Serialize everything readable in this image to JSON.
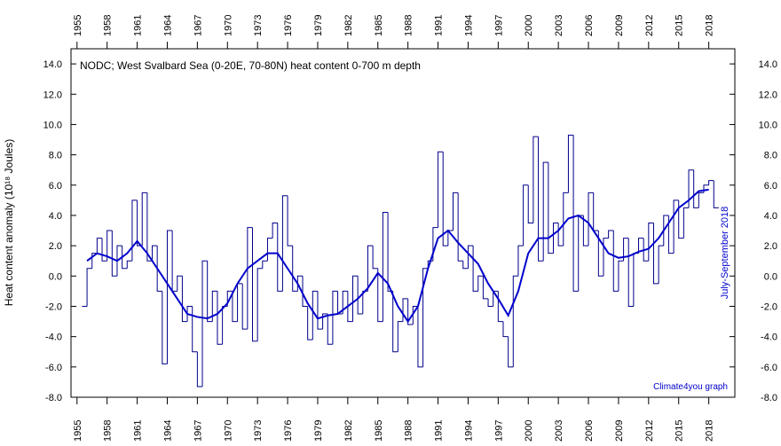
{
  "chart_data": {
    "type": "line",
    "title": "NODC; West Svalbard Sea (0-20E, 70-80N) heat content 0-700 m depth",
    "ylabel": "Heat content anomaly (10¹⁸ Joules)",
    "annotations": [
      "July-September 2018",
      "Climate4you graph"
    ],
    "xlim": [
      1954.4,
      2020.6
    ],
    "ylim": [
      -8,
      15
    ],
    "xticks": [
      1955,
      1958,
      1961,
      1964,
      1967,
      1970,
      1973,
      1976,
      1979,
      1982,
      1985,
      1988,
      1991,
      1994,
      1997,
      2000,
      2003,
      2006,
      2009,
      2012,
      2015,
      2018
    ],
    "yticks": [
      {
        "value": -8,
        "label": "-8.0"
      },
      {
        "value": -6,
        "label": "-6.0"
      },
      {
        "value": -4,
        "label": "-4.0"
      },
      {
        "value": -2,
        "label": "-2.0"
      },
      {
        "value": 0,
        "label": "0.0"
      },
      {
        "value": 2,
        "label": "2.0"
      },
      {
        "value": 4,
        "label": "4.0"
      },
      {
        "value": 6,
        "label": "6.0"
      },
      {
        "value": 8,
        "label": "8.0"
      },
      {
        "value": 10,
        "label": "10.0"
      },
      {
        "value": 12,
        "label": "12.0"
      },
      {
        "value": 14,
        "label": "14.0"
      }
    ],
    "series": [
      {
        "color": "#00008b",
        "style": "step",
        "x": [
          1955.5,
          1956,
          1956.5,
          1957,
          1957.5,
          1958,
          1958.5,
          1959,
          1959.5,
          1960,
          1960.5,
          1961,
          1961.5,
          1962,
          1962.5,
          1963,
          1963.5,
          1964,
          1964.5,
          1965,
          1965.5,
          1966,
          1966.5,
          1967,
          1967.5,
          1968,
          1968.5,
          1969,
          1969.5,
          1970,
          1970.5,
          1971,
          1971.5,
          1972,
          1972.5,
          1973,
          1973.5,
          1974,
          1974.5,
          1975,
          1975.5,
          1976,
          1976.5,
          1977,
          1977.5,
          1978,
          1978.5,
          1979,
          1979.5,
          1980,
          1980.5,
          1981,
          1981.5,
          1982,
          1982.5,
          1983,
          1983.5,
          1984,
          1984.5,
          1985,
          1985.5,
          1986,
          1986.5,
          1987,
          1987.5,
          1988,
          1988.5,
          1989,
          1989.5,
          1990,
          1990.5,
          1991,
          1991.5,
          1992,
          1992.5,
          1993,
          1993.5,
          1994,
          1994.5,
          1995,
          1995.5,
          1996,
          1996.5,
          1997,
          1997.5,
          1998,
          1998.5,
          1999,
          1999.5,
          2000,
          2000.5,
          2001,
          2001.5,
          2002,
          2002.5,
          2003,
          2003.5,
          2004,
          2004.5,
          2005,
          2005.5,
          2006,
          2006.5,
          2007,
          2007.5,
          2008,
          2008.5,
          2009,
          2009.5,
          2010,
          2010.5,
          2011,
          2011.5,
          2012,
          2012.5,
          2013,
          2013.5,
          2014,
          2014.5,
          2015,
          2015.5,
          2016,
          2016.5,
          2017,
          2017.5,
          2018,
          2018.5
        ],
        "values": [
          -2,
          0.5,
          1.5,
          2.5,
          1,
          3,
          0,
          2,
          0.5,
          1,
          5,
          2,
          5.5,
          1,
          2,
          -1,
          -5.8,
          3,
          -1,
          0,
          -3,
          -2,
          -5,
          -7.3,
          1,
          -3,
          -1,
          -4.5,
          -2,
          -1,
          -3,
          -0.5,
          -3.5,
          3.2,
          -4.3,
          0.5,
          1,
          2.5,
          3.5,
          -1,
          5.3,
          2,
          -1,
          0,
          -2,
          -4.2,
          -1,
          -3.5,
          -2.5,
          -4.5,
          -1,
          -2.5,
          -1,
          -3,
          0,
          -2.5,
          -1,
          2,
          0.5,
          -3,
          4.2,
          -1,
          -5,
          -3,
          -1.5,
          -3.2,
          -2,
          -6,
          0.5,
          1,
          3.2,
          8.2,
          2,
          3,
          5.5,
          1,
          0.5,
          2,
          -1,
          0,
          -1.5,
          -2,
          -1,
          -3,
          -4,
          -6,
          0,
          2,
          6,
          3.5,
          9.2,
          1,
          7.5,
          1.5,
          3.5,
          2,
          5.5,
          9.3,
          -1,
          4,
          2,
          5.5,
          3,
          0,
          2.5,
          3,
          -1,
          1,
          2.5,
          -2,
          1.5,
          2.5,
          1,
          3.5,
          -0.5,
          2,
          4,
          1.5,
          5,
          2.5,
          4.5,
          7,
          4.5,
          5.5,
          6,
          6.3,
          4.5
        ]
      },
      {
        "color": "#0000cc",
        "x": [
          1956,
          1957,
          1958,
          1959,
          1960,
          1961,
          1962,
          1963,
          1964,
          1965,
          1966,
          1967,
          1968,
          1969,
          1970,
          1971,
          1972,
          1973,
          1974,
          1975,
          1976,
          1977,
          1978,
          1979,
          1980,
          1981,
          1982,
          1983,
          1984,
          1985,
          1986,
          1987,
          1988,
          1989,
          1990,
          1991,
          1992,
          1993,
          1994,
          1995,
          1996,
          1997,
          1998,
          1999,
          2000,
          2001,
          2002,
          2003,
          2004,
          2005,
          2006,
          2007,
          2008,
          2009,
          2010,
          2011,
          2012,
          2013,
          2014,
          2015,
          2016,
          2017,
          2018
        ],
        "values": [
          1,
          1.5,
          1.3,
          1,
          1.5,
          2.3,
          1.5,
          0.5,
          -0.5,
          -1.5,
          -2.5,
          -2.7,
          -2.8,
          -2.5,
          -1.8,
          -0.5,
          0.5,
          1,
          1.5,
          1.5,
          0.5,
          -0.5,
          -1.8,
          -2.8,
          -2.6,
          -2.5,
          -2,
          -1.5,
          -0.8,
          0.2,
          -0.5,
          -2,
          -3,
          -2,
          0.5,
          2.5,
          3,
          2.2,
          1.5,
          0.8,
          -0.5,
          -1.5,
          -2.6,
          -1,
          1.5,
          2.5,
          2.5,
          3,
          3.8,
          4,
          3.5,
          2.5,
          1.5,
          1.2,
          1.3,
          1.6,
          1.8,
          2.5,
          3.5,
          4.5,
          5,
          5.6,
          5.7
        ]
      }
    ]
  }
}
